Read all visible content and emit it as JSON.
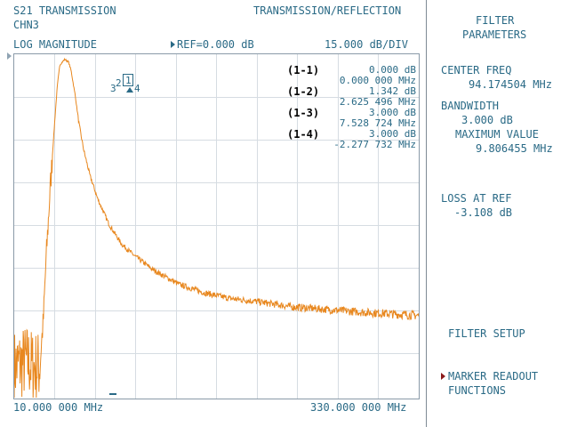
{
  "header": {
    "measurement": "S21 TRANSMISSION",
    "mode": "TRANSMISSION/REFLECTION",
    "channel": "CHN3",
    "format": "LOG MAGNITUDE",
    "ref": "REF=0.000 dB",
    "scale": "15.000 dB/DIV"
  },
  "footer": {
    "start_freq": "10.000 000 MHz",
    "stop_freq": "330.000 000 MHz"
  },
  "markers": [
    {
      "label": "(1-1)",
      "value1": "0.000 dB",
      "value2": "0.000 000 MHz"
    },
    {
      "label": "(1-2)",
      "value1": "1.342 dB",
      "value2": "2.625 496 MHz"
    },
    {
      "label": "(1-3)",
      "value1": "3.000 dB",
      "value2": "7.528 724 MHz"
    },
    {
      "label": "(1-4)",
      "value1": "3.000 dB",
      "value2": "-2.277 732 MHz"
    }
  ],
  "marker_tags": {
    "m1": "1",
    "m2": "2",
    "m3": "3",
    "m4": "4"
  },
  "panel": {
    "title1": "FILTER",
    "title2": "PARAMETERS",
    "center_label": "CENTER FREQ",
    "center_value": "94.174504 MHz",
    "bw_label": "BANDWIDTH",
    "bw_value": "3.000 dB",
    "max_label": "MAXIMUM VALUE",
    "max_value": "9.806455 MHz",
    "loss_label": "LOSS AT REF",
    "loss_value": "-3.108 dB"
  },
  "softkeys": {
    "filter_setup": "FILTER SETUP",
    "marker_readout_1": "MARKER READOUT",
    "marker_readout_2": "FUNCTIONS"
  },
  "colors": {
    "trace": "#e8871e",
    "text": "#2a6a86",
    "grid": "#d6dce2",
    "active_arrow": "#8b1a1a"
  },
  "chart_data": {
    "type": "line",
    "title": "S21 TRANSMISSION",
    "xlabel": "",
    "ylabel": "",
    "x_units": "MHz",
    "xlim": [
      10,
      330
    ],
    "y_units": "dB",
    "ylim": [
      -120,
      15
    ],
    "ref_level_db": 0,
    "scale_db_per_div": 15,
    "grid": true,
    "series": [
      {
        "points": [
          [
            10,
            -106
          ],
          [
            20,
            -104
          ],
          [
            25,
            -106
          ],
          [
            30,
            -106
          ],
          [
            31,
            -101
          ],
          [
            33,
            -90
          ],
          [
            35,
            -70
          ],
          [
            38,
            -47
          ],
          [
            40,
            -33
          ],
          [
            42,
            -20
          ],
          [
            44,
            -8
          ],
          [
            46,
            0
          ],
          [
            50,
            2
          ],
          [
            53,
            1
          ],
          [
            55,
            -2
          ],
          [
            58,
            -10
          ],
          [
            61,
            -20
          ],
          [
            65,
            -30
          ],
          [
            70,
            -39
          ],
          [
            76,
            -47
          ],
          [
            85,
            -56
          ],
          [
            95,
            -63
          ],
          [
            105,
            -67
          ],
          [
            120,
            -72
          ],
          [
            140,
            -77
          ],
          [
            160,
            -80
          ],
          [
            180,
            -82
          ],
          [
            200,
            -83
          ],
          [
            230,
            -85
          ],
          [
            260,
            -86
          ],
          [
            290,
            -87
          ],
          [
            310,
            -87.5
          ],
          [
            330,
            -88
          ]
        ],
        "noise_db": 6
      }
    ]
  }
}
